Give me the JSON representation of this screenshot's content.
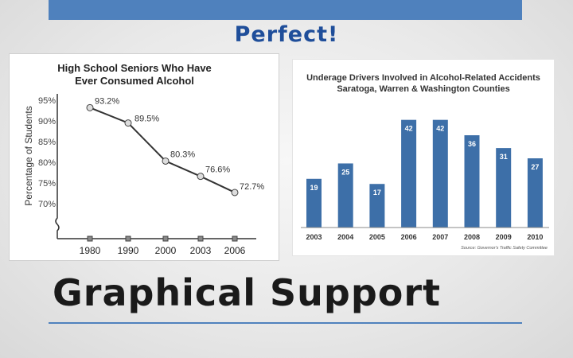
{
  "slide": {
    "title": "Perfect!",
    "subtitle": "Graphical Support"
  },
  "colors": {
    "accent": "#4f81bd",
    "bar": "#3d6fa8",
    "line": "#333333"
  },
  "chart_data": [
    {
      "type": "line",
      "title_lines": [
        "High School Seniors Who Have",
        "Ever Consumed Alcohol"
      ],
      "ylabel": "Percentage of Students",
      "xlabel": "",
      "y_ticks": [
        "95%",
        "90%",
        "85%",
        "80%",
        "75%",
        "70%"
      ],
      "ylim": [
        70,
        95
      ],
      "axis_break": true,
      "categories": [
        "1980",
        "1990",
        "2000",
        "2003",
        "2006"
      ],
      "values": [
        93.2,
        89.5,
        80.3,
        76.6,
        72.7
      ],
      "labels": [
        "93.2%",
        "89.5%",
        "80.3%",
        "76.6%",
        "72.7%"
      ],
      "grid": false
    },
    {
      "type": "bar",
      "title_lines": [
        "Underage Drivers Involved in Alcohol-Related Accidents",
        "Saratoga, Warren & Washington Counties"
      ],
      "categories": [
        "2003",
        "2004",
        "2005",
        "2006",
        "2007",
        "2008",
        "2009",
        "2010"
      ],
      "values": [
        19,
        25,
        17,
        42,
        42,
        36,
        31,
        27
      ],
      "ylim": [
        0,
        45
      ],
      "source": "Source: Governor's Traffic Safety Committee",
      "grid": false
    }
  ]
}
